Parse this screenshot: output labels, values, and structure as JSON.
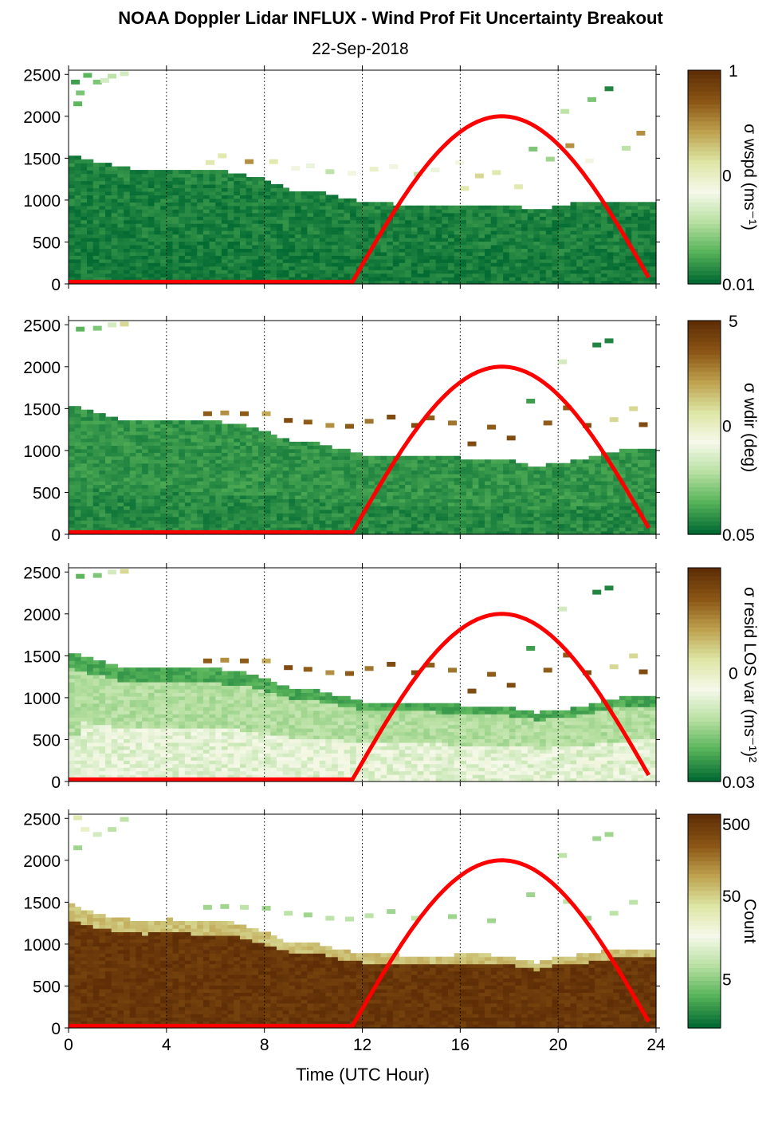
{
  "title": "NOAA Doppler Lidar INFLUX - Wind Prof Fit Uncertainty Breakout",
  "subtitle": "22-Sep-2018",
  "x_axis": {
    "label": "Time (UTC Hour)",
    "range": [
      0,
      24
    ],
    "ticks": [
      0,
      4,
      8,
      12,
      16,
      20,
      24
    ],
    "tick_labels": [
      "0",
      "4",
      "8",
      "12",
      "16",
      "20",
      "24"
    ],
    "grid": "dotted vertical"
  },
  "y_axis": {
    "range": [
      0,
      2550
    ],
    "ticks": [
      0,
      500,
      1000,
      1500,
      2000,
      2500
    ],
    "tick_labels": [
      "0",
      "500",
      "1000",
      "1500",
      "2000",
      "2500"
    ]
  },
  "colorscale": [
    "#046b33",
    "#58b45a",
    "#b8e0a2",
    "#f6f9ea",
    "#dde6a4",
    "#bea24f",
    "#8c5716",
    "#5f2e06"
  ],
  "sun_curve_color": "#ff0000",
  "chart_data": [
    {
      "type": "heatmap",
      "panel": 1,
      "colorbar_label": "σ wspd (ms⁻¹)",
      "colorbar_scale": "log",
      "colorbar_ticks": [
        "1",
        "0",
        "0.01"
      ],
      "layers": {
        "bottom": 0.03,
        "mid": 0.04,
        "top_color": 0.05
      },
      "columns": [
        {
          "t": 0,
          "h": 1550
        },
        {
          "t": 1,
          "h": 1480
        },
        {
          "t": 2,
          "h": 1420
        },
        {
          "t": 3,
          "h": 1380
        },
        {
          "t": 4,
          "h": 1390
        },
        {
          "t": 5,
          "h": 1360
        },
        {
          "t": 6,
          "h": 1370
        },
        {
          "t": 7,
          "h": 1330
        },
        {
          "t": 8,
          "h": 1260
        },
        {
          "t": 9,
          "h": 1120
        },
        {
          "t": 10,
          "h": 1140
        },
        {
          "t": 11,
          "h": 1060
        },
        {
          "t": 12,
          "h": 980
        },
        {
          "t": 13,
          "h": 980
        },
        {
          "t": 14,
          "h": 960
        },
        {
          "t": 15,
          "h": 960
        },
        {
          "t": 16,
          "h": 950
        },
        {
          "t": 17,
          "h": 950
        },
        {
          "t": 18,
          "h": 950
        },
        {
          "t": 19,
          "h": 900
        },
        {
          "t": 20,
          "h": 960
        },
        {
          "t": 21,
          "h": 1000
        },
        {
          "t": 22,
          "h": 1000
        },
        {
          "t": 23,
          "h": 1000
        },
        {
          "t": 23.8,
          "h": 1000
        }
      ],
      "blocks": [
        {
          "t": 0.1,
          "z": 2380,
          "v": 0.1
        },
        {
          "t": 0.6,
          "z": 2460,
          "v": 0.15
        },
        {
          "t": 1.0,
          "z": 2380,
          "v": 0.2
        },
        {
          "t": 1.6,
          "z": 2450,
          "v": 0.3
        },
        {
          "t": 1.3,
          "z": 2400,
          "v": 0.35
        },
        {
          "t": 2.1,
          "z": 2480,
          "v": 0.35
        },
        {
          "t": 0.2,
          "z": 2120,
          "v": 0.15
        },
        {
          "t": 0.3,
          "z": 2250,
          "v": 0.2
        },
        {
          "t": 6.1,
          "z": 1500,
          "v": 0.55
        },
        {
          "t": 5.6,
          "z": 1420,
          "v": 0.55
        },
        {
          "t": 7.2,
          "z": 1430,
          "v": 0.75
        },
        {
          "t": 8.2,
          "z": 1430,
          "v": 0.55
        },
        {
          "t": 9.1,
          "z": 1350,
          "v": 0.45
        },
        {
          "t": 9.7,
          "z": 1380,
          "v": 0.4
        },
        {
          "t": 10.5,
          "z": 1310,
          "v": 0.3
        },
        {
          "t": 11.4,
          "z": 1290,
          "v": 0.45
        },
        {
          "t": 12.3,
          "z": 1340,
          "v": 0.5
        },
        {
          "t": 13.1,
          "z": 1370,
          "v": 0.45
        },
        {
          "t": 14.1,
          "z": 1280,
          "v": 0.3
        },
        {
          "t": 14.8,
          "z": 1330,
          "v": 0.4
        },
        {
          "t": 15.8,
          "z": 1420,
          "v": 0.45
        },
        {
          "t": 16.6,
          "z": 1260,
          "v": 0.6
        },
        {
          "t": 16.0,
          "z": 1110,
          "v": 0.55
        },
        {
          "t": 17.3,
          "z": 1300,
          "v": 0.55
        },
        {
          "t": 18.2,
          "z": 1130,
          "v": 0.55
        },
        {
          "t": 18.8,
          "z": 1580,
          "v": 0.2
        },
        {
          "t": 19.5,
          "z": 1460,
          "v": 0.25
        },
        {
          "t": 20.3,
          "z": 1620,
          "v": 0.75
        },
        {
          "t": 21.1,
          "z": 1440,
          "v": 0.45
        },
        {
          "t": 22.6,
          "z": 1590,
          "v": 0.3
        },
        {
          "t": 23.2,
          "z": 1770,
          "v": 0.75
        },
        {
          "t": 21.9,
          "z": 2300,
          "v": 0.05
        },
        {
          "t": 20.1,
          "z": 2030,
          "v": 0.3
        },
        {
          "t": 21.2,
          "z": 2170,
          "v": 0.2
        }
      ]
    },
    {
      "type": "heatmap",
      "panel": 2,
      "colorbar_label": "σ wdir (deg)",
      "colorbar_scale": "log",
      "colorbar_ticks": [
        "5",
        "0",
        "0.05"
      ],
      "layers": {
        "bottom": 0.06,
        "mid": 0.08,
        "top_color": 0.08
      },
      "columns": [
        {
          "t": 0,
          "h": 1560
        },
        {
          "t": 1,
          "h": 1480
        },
        {
          "t": 2,
          "h": 1380
        },
        {
          "t": 3,
          "h": 1380
        },
        {
          "t": 4,
          "h": 1390
        },
        {
          "t": 5,
          "h": 1380
        },
        {
          "t": 6,
          "h": 1360
        },
        {
          "t": 7,
          "h": 1320
        },
        {
          "t": 8,
          "h": 1250
        },
        {
          "t": 9,
          "h": 1120
        },
        {
          "t": 10,
          "h": 1120
        },
        {
          "t": 11,
          "h": 1040
        },
        {
          "t": 12,
          "h": 970
        },
        {
          "t": 13,
          "h": 960
        },
        {
          "t": 14,
          "h": 960
        },
        {
          "t": 15,
          "h": 950
        },
        {
          "t": 16,
          "h": 930
        },
        {
          "t": 17,
          "h": 920
        },
        {
          "t": 18,
          "h": 900
        },
        {
          "t": 19,
          "h": 820
        },
        {
          "t": 20,
          "h": 880
        },
        {
          "t": 21,
          "h": 920
        },
        {
          "t": 22,
          "h": 1000
        },
        {
          "t": 23,
          "h": 1050
        },
        {
          "t": 23.8,
          "h": 1050
        }
      ],
      "blocks": [
        {
          "t": 0.3,
          "z": 2420,
          "v": 0.15
        },
        {
          "t": 1.0,
          "z": 2430,
          "v": 0.2
        },
        {
          "t": 1.6,
          "z": 2470,
          "v": 0.35
        },
        {
          "t": 2.1,
          "z": 2480,
          "v": 0.6
        },
        {
          "t": 5.5,
          "z": 1410,
          "v": 0.85
        },
        {
          "t": 6.2,
          "z": 1420,
          "v": 0.75
        },
        {
          "t": 7.0,
          "z": 1410,
          "v": 0.85
        },
        {
          "t": 7.9,
          "z": 1410,
          "v": 0.7
        },
        {
          "t": 8.8,
          "z": 1330,
          "v": 0.9
        },
        {
          "t": 9.6,
          "z": 1310,
          "v": 0.85
        },
        {
          "t": 10.5,
          "z": 1270,
          "v": 0.75
        },
        {
          "t": 11.3,
          "z": 1260,
          "v": 0.85
        },
        {
          "t": 12.1,
          "z": 1320,
          "v": 0.8
        },
        {
          "t": 13.0,
          "z": 1370,
          "v": 0.9
        },
        {
          "t": 14.0,
          "z": 1270,
          "v": 0.9
        },
        {
          "t": 14.6,
          "z": 1360,
          "v": 0.85
        },
        {
          "t": 15.5,
          "z": 1300,
          "v": 0.8
        },
        {
          "t": 16.3,
          "z": 1050,
          "v": 0.9
        },
        {
          "t": 17.1,
          "z": 1250,
          "v": 0.85
        },
        {
          "t": 17.9,
          "z": 1120,
          "v": 0.9
        },
        {
          "t": 18.7,
          "z": 1560,
          "v": 0.1
        },
        {
          "t": 19.4,
          "z": 1300,
          "v": 0.85
        },
        {
          "t": 20.2,
          "z": 1480,
          "v": 0.85
        },
        {
          "t": 21.0,
          "z": 1270,
          "v": 0.9
        },
        {
          "t": 22.1,
          "z": 1340,
          "v": 0.6
        },
        {
          "t": 22.9,
          "z": 1470,
          "v": 0.6
        },
        {
          "t": 23.3,
          "z": 1280,
          "v": 0.9
        },
        {
          "t": 21.4,
          "z": 2230,
          "v": 0.05
        },
        {
          "t": 21.9,
          "z": 2280,
          "v": 0.05
        },
        {
          "t": 20.0,
          "z": 2030,
          "v": 0.35
        }
      ]
    },
    {
      "type": "heatmap",
      "panel": 3,
      "colorbar_label": "σ resid LOS var (ms⁻¹)²",
      "colorbar_scale": "log",
      "colorbar_ticks": [
        "0",
        "0.03"
      ],
      "layers": {
        "bottom": 0.38,
        "mid": 0.28,
        "top_color": 0.12
      },
      "columns": [
        {
          "t": 0,
          "h": 1560
        },
        {
          "t": 1,
          "h": 1480
        },
        {
          "t": 2,
          "h": 1380
        },
        {
          "t": 3,
          "h": 1380
        },
        {
          "t": 4,
          "h": 1390
        },
        {
          "t": 5,
          "h": 1380
        },
        {
          "t": 6,
          "h": 1360
        },
        {
          "t": 7,
          "h": 1320
        },
        {
          "t": 8,
          "h": 1250
        },
        {
          "t": 9,
          "h": 1120
        },
        {
          "t": 10,
          "h": 1120
        },
        {
          "t": 11,
          "h": 1040
        },
        {
          "t": 12,
          "h": 970
        },
        {
          "t": 13,
          "h": 960
        },
        {
          "t": 14,
          "h": 960
        },
        {
          "t": 15,
          "h": 950
        },
        {
          "t": 16,
          "h": 930
        },
        {
          "t": 17,
          "h": 920
        },
        {
          "t": 18,
          "h": 900
        },
        {
          "t": 19,
          "h": 840
        },
        {
          "t": 20,
          "h": 880
        },
        {
          "t": 21,
          "h": 920
        },
        {
          "t": 22,
          "h": 1000
        },
        {
          "t": 23,
          "h": 1050
        },
        {
          "t": 23.8,
          "h": 1050
        }
      ],
      "blocks": [
        {
          "t": 0.3,
          "z": 2420,
          "v": 0.15
        },
        {
          "t": 1.0,
          "z": 2430,
          "v": 0.2
        },
        {
          "t": 1.6,
          "z": 2470,
          "v": 0.35
        },
        {
          "t": 2.1,
          "z": 2480,
          "v": 0.6
        },
        {
          "t": 5.5,
          "z": 1410,
          "v": 0.85
        },
        {
          "t": 6.2,
          "z": 1420,
          "v": 0.75
        },
        {
          "t": 7.0,
          "z": 1410,
          "v": 0.85
        },
        {
          "t": 7.9,
          "z": 1410,
          "v": 0.7
        },
        {
          "t": 8.8,
          "z": 1330,
          "v": 0.9
        },
        {
          "t": 9.6,
          "z": 1310,
          "v": 0.85
        },
        {
          "t": 10.5,
          "z": 1270,
          "v": 0.75
        },
        {
          "t": 11.3,
          "z": 1260,
          "v": 0.85
        },
        {
          "t": 12.1,
          "z": 1320,
          "v": 0.8
        },
        {
          "t": 13.0,
          "z": 1370,
          "v": 0.9
        },
        {
          "t": 14.0,
          "z": 1270,
          "v": 0.9
        },
        {
          "t": 14.6,
          "z": 1360,
          "v": 0.85
        },
        {
          "t": 15.5,
          "z": 1300,
          "v": 0.8
        },
        {
          "t": 16.3,
          "z": 1050,
          "v": 0.9
        },
        {
          "t": 17.1,
          "z": 1250,
          "v": 0.85
        },
        {
          "t": 17.9,
          "z": 1120,
          "v": 0.9
        },
        {
          "t": 18.7,
          "z": 1560,
          "v": 0.1
        },
        {
          "t": 19.4,
          "z": 1300,
          "v": 0.85
        },
        {
          "t": 20.2,
          "z": 1480,
          "v": 0.85
        },
        {
          "t": 21.0,
          "z": 1270,
          "v": 0.9
        },
        {
          "t": 22.1,
          "z": 1340,
          "v": 0.6
        },
        {
          "t": 22.9,
          "z": 1470,
          "v": 0.6
        },
        {
          "t": 23.3,
          "z": 1280,
          "v": 0.9
        },
        {
          "t": 21.4,
          "z": 2230,
          "v": 0.05
        },
        {
          "t": 21.9,
          "z": 2280,
          "v": 0.05
        },
        {
          "t": 20.0,
          "z": 2030,
          "v": 0.35
        }
      ]
    },
    {
      "type": "heatmap",
      "panel": 4,
      "colorbar_label": "Count",
      "colorbar_scale": "log",
      "colorbar_ticks": [
        "500",
        "50",
        "5"
      ],
      "layers": {
        "bottom": 0.97,
        "mid": 0.97,
        "top_color": 0.65
      },
      "columns": [
        {
          "t": 0,
          "h": 1500
        },
        {
          "t": 1,
          "h": 1380
        },
        {
          "t": 2,
          "h": 1330
        },
        {
          "t": 3,
          "h": 1300
        },
        {
          "t": 4,
          "h": 1320
        },
        {
          "t": 5,
          "h": 1300
        },
        {
          "t": 6,
          "h": 1300
        },
        {
          "t": 7,
          "h": 1250
        },
        {
          "t": 8,
          "h": 1150
        },
        {
          "t": 9,
          "h": 1020
        },
        {
          "t": 10,
          "h": 1020
        },
        {
          "t": 11,
          "h": 950
        },
        {
          "t": 12,
          "h": 900
        },
        {
          "t": 13,
          "h": 900
        },
        {
          "t": 14,
          "h": 880
        },
        {
          "t": 15,
          "h": 870
        },
        {
          "t": 16,
          "h": 900
        },
        {
          "t": 17,
          "h": 900
        },
        {
          "t": 18,
          "h": 860
        },
        {
          "t": 19,
          "h": 800
        },
        {
          "t": 20,
          "h": 870
        },
        {
          "t": 21,
          "h": 900
        },
        {
          "t": 22,
          "h": 950
        },
        {
          "t": 23,
          "h": 970
        },
        {
          "t": 23.8,
          "h": 970
        }
      ],
      "blocks": [
        {
          "t": 0.2,
          "z": 2480,
          "v": 0.55
        },
        {
          "t": 0.5,
          "z": 2340,
          "v": 0.5
        },
        {
          "t": 1.0,
          "z": 2280,
          "v": 0.35
        },
        {
          "t": 1.6,
          "z": 2340,
          "v": 0.3
        },
        {
          "t": 2.1,
          "z": 2460,
          "v": 0.3
        },
        {
          "t": 0.2,
          "z": 2120,
          "v": 0.25
        },
        {
          "t": 5.5,
          "z": 1410,
          "v": 0.25
        },
        {
          "t": 6.2,
          "z": 1420,
          "v": 0.25
        },
        {
          "t": 7.0,
          "z": 1410,
          "v": 0.3
        },
        {
          "t": 7.9,
          "z": 1400,
          "v": 0.25
        },
        {
          "t": 8.8,
          "z": 1340,
          "v": 0.3
        },
        {
          "t": 9.6,
          "z": 1320,
          "v": 0.25
        },
        {
          "t": 10.5,
          "z": 1280,
          "v": 0.3
        },
        {
          "t": 11.3,
          "z": 1270,
          "v": 0.3
        },
        {
          "t": 12.1,
          "z": 1310,
          "v": 0.3
        },
        {
          "t": 13.0,
          "z": 1360,
          "v": 0.25
        },
        {
          "t": 14.0,
          "z": 1280,
          "v": 0.3
        },
        {
          "t": 15.5,
          "z": 1300,
          "v": 0.25
        },
        {
          "t": 17.1,
          "z": 1250,
          "v": 0.25
        },
        {
          "t": 18.7,
          "z": 1560,
          "v": 0.25
        },
        {
          "t": 20.2,
          "z": 1480,
          "v": 0.3
        },
        {
          "t": 21.0,
          "z": 1280,
          "v": 0.25
        },
        {
          "t": 22.1,
          "z": 1340,
          "v": 0.3
        },
        {
          "t": 22.9,
          "z": 1470,
          "v": 0.3
        },
        {
          "t": 21.4,
          "z": 2230,
          "v": 0.25
        },
        {
          "t": 21.9,
          "z": 2280,
          "v": 0.25
        },
        {
          "t": 20.0,
          "z": 2030,
          "v": 0.3
        }
      ]
    }
  ],
  "sun_curve": {
    "description_points": [
      {
        "t": 0,
        "z": 25
      },
      {
        "t": 11.6,
        "z": 25
      },
      {
        "t": 12.5,
        "z": 430
      },
      {
        "t": 14,
        "z": 1200
      },
      {
        "t": 15.5,
        "z": 1750
      },
      {
        "t": 17.6,
        "z": 2000
      },
      {
        "t": 19.5,
        "z": 1750
      },
      {
        "t": 21.5,
        "z": 1050
      },
      {
        "t": 23,
        "z": 400
      },
      {
        "t": 23.8,
        "z": 25
      }
    ]
  }
}
